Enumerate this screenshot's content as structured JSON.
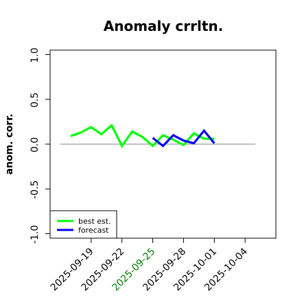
{
  "chart_data": {
    "type": "line",
    "title": "Anomaly crrltn.",
    "xlabel": "",
    "ylabel": "anom. corr.",
    "ylim": [
      -1.05,
      1.05
    ],
    "xlim": [
      "2025-09-15",
      "2025-10-07"
    ],
    "y_ticks": [
      -1.0,
      -0.5,
      0.0,
      0.5,
      1.0
    ],
    "y_tick_labels": [
      "-1.0",
      "-0.5",
      "0.0",
      "0.5",
      "1.0"
    ],
    "x_ticks": [
      "2025-09-19",
      "2025-09-22",
      "2025-09-25",
      "2025-09-28",
      "2025-10-01",
      "2025-10-04"
    ],
    "x_tick_labels": [
      "2025-09-19",
      "2025-09-22",
      "2025-09-25",
      "2025-09-28",
      "2025-10-01",
      "2025-10-04"
    ],
    "highlight_tick": "2025-09-25",
    "highlight_color": "#008000",
    "reference_line": {
      "y": 0.0,
      "x_start": "2025-09-16",
      "x_end": "2025-10-05",
      "color": "#808080"
    },
    "series": [
      {
        "name": "best est.",
        "color": "#00ff00",
        "x": [
          "2025-09-17",
          "2025-09-18",
          "2025-09-19",
          "2025-09-20",
          "2025-09-21",
          "2025-09-22",
          "2025-09-23",
          "2025-09-24",
          "2025-09-25",
          "2025-09-26",
          "2025-09-27",
          "2025-09-28",
          "2025-09-29",
          "2025-09-30",
          "2025-10-01"
        ],
        "values": [
          0.09,
          0.13,
          0.19,
          0.11,
          0.21,
          -0.02,
          0.14,
          0.08,
          -0.02,
          0.1,
          0.05,
          -0.01,
          0.12,
          0.06,
          0.06
        ]
      },
      {
        "name": "forecast",
        "color": "#0000ff",
        "x": [
          "2025-09-25",
          "2025-09-26",
          "2025-09-27",
          "2025-09-28",
          "2025-09-29",
          "2025-09-30",
          "2025-10-01"
        ],
        "values": [
          0.07,
          -0.02,
          0.1,
          0.04,
          0.01,
          0.15,
          0.01
        ]
      }
    ],
    "legend": {
      "position": "bottom-left",
      "entries": [
        "best est.",
        "forecast"
      ]
    }
  }
}
